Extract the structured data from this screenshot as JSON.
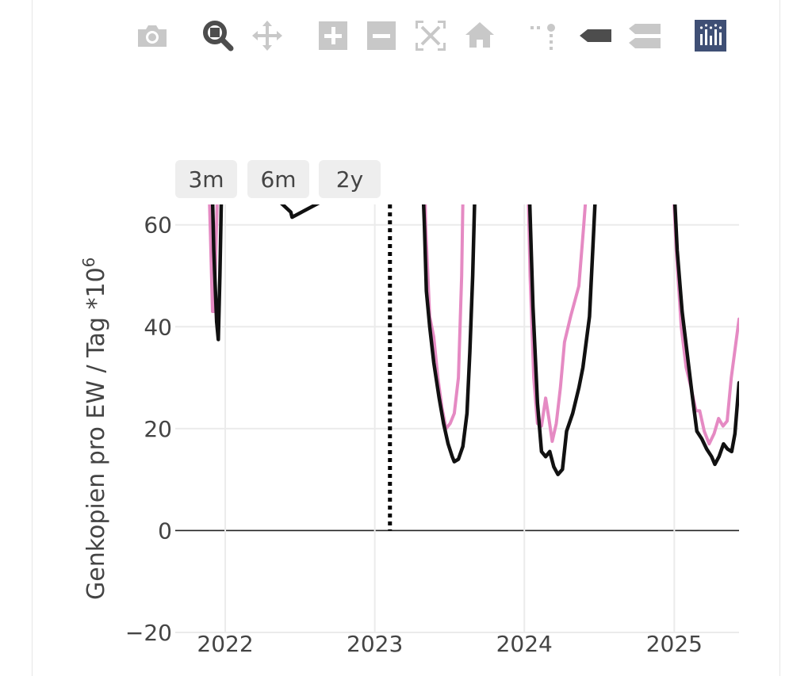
{
  "modebar": {
    "buttons": [
      {
        "name": "camera-icon",
        "active": false
      },
      {
        "name": "zoom-icon",
        "active": true
      },
      {
        "name": "pan-icon",
        "active": false
      },
      {
        "name": "zoom-in-icon",
        "active": false
      },
      {
        "name": "zoom-out-icon",
        "active": false
      },
      {
        "name": "autoscale-icon",
        "active": false
      },
      {
        "name": "home-icon",
        "active": false
      },
      {
        "name": "spike-lines-icon",
        "active": false
      },
      {
        "name": "hover-closest-icon",
        "active": false
      },
      {
        "name": "hover-compare-icon",
        "active": false
      },
      {
        "name": "plotly-logo-icon",
        "active": false
      }
    ]
  },
  "range_selector": {
    "buttons": [
      {
        "label": "3m"
      },
      {
        "label": "6m"
      },
      {
        "label": "2y"
      }
    ]
  },
  "chart_data": {
    "type": "line",
    "ylabel": "Genkopien pro EW / Tag *10",
    "ylabel_superscript": "6",
    "x_ticks": [
      "2022",
      "2023",
      "2024",
      "2025"
    ],
    "y_ticks": [
      "−20",
      "0",
      "20",
      "40",
      "60"
    ],
    "xlim": [
      "2021-09-01",
      "2025-06-08"
    ],
    "ylim": [
      -20,
      64
    ],
    "vline": {
      "x": "2023-02-07",
      "style": "dotted",
      "color": "#000000"
    },
    "colors": {
      "pink": "#e58ac3",
      "black": "#111111",
      "grid": "#ebebeb"
    },
    "series": [
      {
        "color": "#e58ac3",
        "points": [
          [
            "2021-11-20",
            75
          ],
          [
            "2021-11-26",
            58
          ],
          [
            "2021-12-01",
            43
          ],
          [
            "2021-12-05",
            43
          ],
          [
            "2021-12-10",
            58
          ],
          [
            "2021-12-16",
            75
          ],
          [
            "2023-04-28",
            90
          ],
          [
            "2023-05-05",
            60
          ],
          [
            "2023-05-15",
            42
          ],
          [
            "2023-05-25",
            38
          ],
          [
            "2023-06-04",
            30
          ],
          [
            "2023-06-14",
            24
          ],
          [
            "2023-06-24",
            20
          ],
          [
            "2023-07-04",
            21
          ],
          [
            "2023-07-14",
            23
          ],
          [
            "2023-07-24",
            30
          ],
          [
            "2023-08-01",
            50
          ],
          [
            "2023-08-06",
            75
          ],
          [
            "2024-01-08",
            75
          ],
          [
            "2024-01-15",
            50
          ],
          [
            "2024-01-24",
            30
          ],
          [
            "2024-02-02",
            21
          ],
          [
            "2024-02-12",
            20.5
          ],
          [
            "2024-02-22",
            26
          ],
          [
            "2024-03-01",
            22
          ],
          [
            "2024-03-09",
            17.5
          ],
          [
            "2024-03-19",
            21
          ],
          [
            "2024-03-29",
            28
          ],
          [
            "2024-04-08",
            37
          ],
          [
            "2024-04-23",
            42
          ],
          [
            "2024-05-13",
            48
          ],
          [
            "2024-05-25",
            60
          ],
          [
            "2024-06-08",
            75
          ],
          [
            "2024-12-28",
            70
          ],
          [
            "2025-01-06",
            55
          ],
          [
            "2025-01-18",
            40
          ],
          [
            "2025-01-30",
            32
          ],
          [
            "2025-02-11",
            28
          ],
          [
            "2025-02-23",
            23.5
          ],
          [
            "2025-03-04",
            23.5
          ],
          [
            "2025-03-15",
            19.5
          ],
          [
            "2025-03-27",
            17
          ],
          [
            "2025-04-08",
            19
          ],
          [
            "2025-04-19",
            22
          ],
          [
            "2025-04-30",
            20.5
          ],
          [
            "2025-05-10",
            21.5
          ],
          [
            "2025-05-20",
            30
          ],
          [
            "2025-05-30",
            36
          ],
          [
            "2025-06-08",
            41.5
          ]
        ]
      },
      {
        "color": "#111111",
        "points": [
          [
            "2021-11-28",
            75
          ],
          [
            "2021-12-04",
            55
          ],
          [
            "2021-12-11",
            41
          ],
          [
            "2021-12-15",
            37.5
          ],
          [
            "2021-12-19",
            50
          ],
          [
            "2021-12-25",
            75
          ],
          [
            "2022-06-10",
            62.5
          ],
          [
            "2022-06-13",
            61.5
          ],
          [
            "2023-04-25",
            75
          ],
          [
            "2023-05-02",
            60
          ],
          [
            "2023-05-07",
            47
          ],
          [
            "2023-05-15",
            40
          ],
          [
            "2023-05-25",
            33
          ],
          [
            "2023-06-07",
            26
          ],
          [
            "2023-06-18",
            21
          ],
          [
            "2023-06-29",
            17
          ],
          [
            "2023-07-09",
            14.5
          ],
          [
            "2023-07-14",
            13.5
          ],
          [
            "2023-07-24",
            14
          ],
          [
            "2023-08-04",
            16.5
          ],
          [
            "2023-08-14",
            23
          ],
          [
            "2023-08-21",
            35
          ],
          [
            "2023-08-28",
            50
          ],
          [
            "2023-09-05",
            75
          ],
          [
            "2024-01-12",
            70
          ],
          [
            "2024-01-22",
            44
          ],
          [
            "2024-02-02",
            25
          ],
          [
            "2024-02-12",
            15.5
          ],
          [
            "2024-02-22",
            14.5
          ],
          [
            "2024-03-03",
            15.5
          ],
          [
            "2024-03-13",
            12.5
          ],
          [
            "2024-03-23",
            11
          ],
          [
            "2024-04-03",
            12
          ],
          [
            "2024-04-13",
            19.5
          ],
          [
            "2024-04-28",
            23
          ],
          [
            "2024-05-13",
            28
          ],
          [
            "2024-05-23",
            32
          ],
          [
            "2024-06-08",
            42
          ],
          [
            "2024-06-16",
            55
          ],
          [
            "2024-06-28",
            75
          ],
          [
            "2024-12-30",
            70
          ],
          [
            "2025-01-08",
            55
          ],
          [
            "2025-01-20",
            43
          ],
          [
            "2025-02-01",
            35
          ],
          [
            "2025-02-13",
            27
          ],
          [
            "2025-02-25",
            19.5
          ],
          [
            "2025-03-09",
            18
          ],
          [
            "2025-03-21",
            16
          ],
          [
            "2025-04-02",
            14.5
          ],
          [
            "2025-04-10",
            13
          ],
          [
            "2025-04-20",
            14.5
          ],
          [
            "2025-05-01",
            17
          ],
          [
            "2025-05-11",
            16
          ],
          [
            "2025-05-21",
            15.5
          ],
          [
            "2025-05-29",
            19
          ],
          [
            "2025-06-08",
            29
          ]
        ]
      }
    ]
  }
}
